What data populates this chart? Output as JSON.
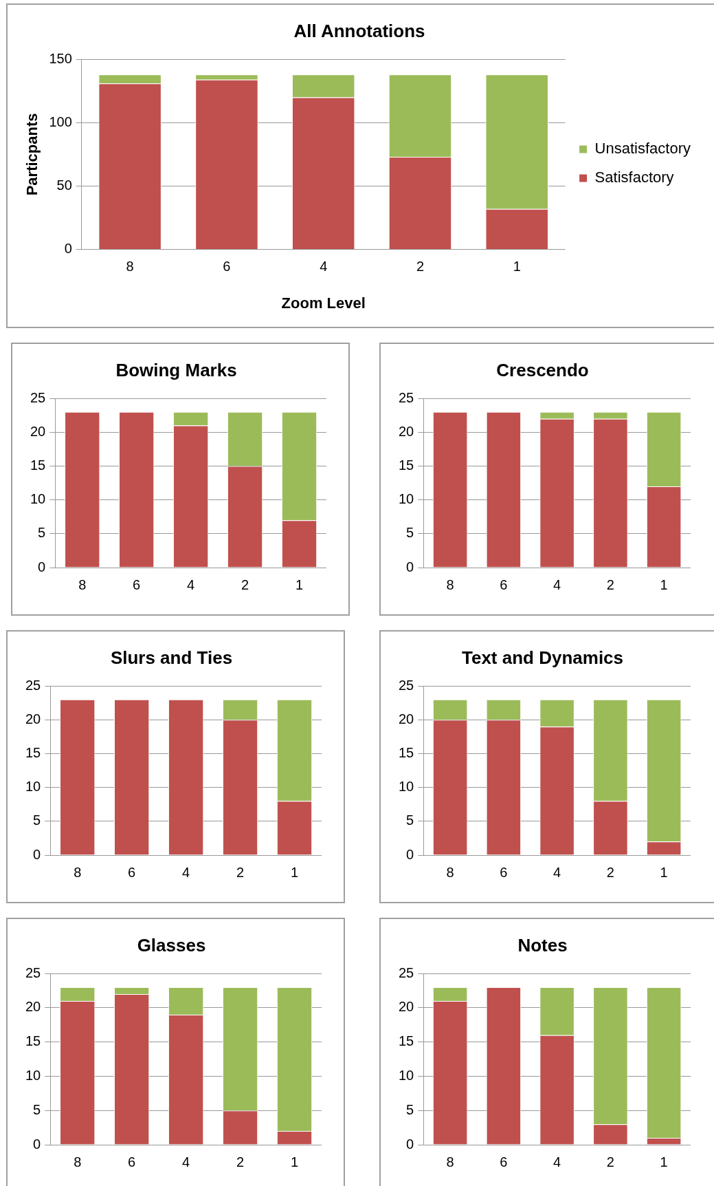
{
  "chart_data": [
    {
      "type": "bar",
      "title": "All Annotations",
      "xlabel": "Zoom Level",
      "ylabel": "Particpants",
      "categories": [
        "8",
        "6",
        "4",
        "2",
        "1"
      ],
      "stacked": true,
      "ylim": [
        0,
        150
      ],
      "yticks": [
        0,
        50,
        100,
        150
      ],
      "grid": "y",
      "legend": "right",
      "series": [
        {
          "name": "Satisfactory",
          "color": "#c0504d",
          "values": [
            131,
            134,
            120,
            73,
            32
          ]
        },
        {
          "name": "Unsatisfactory",
          "color": "#9bbb59",
          "values": [
            7,
            4,
            18,
            65,
            106
          ]
        }
      ]
    },
    {
      "type": "bar",
      "title": "Bowing Marks",
      "categories": [
        "8",
        "6",
        "4",
        "2",
        "1"
      ],
      "stacked": true,
      "ylim": [
        0,
        25
      ],
      "yticks": [
        0,
        5,
        10,
        15,
        20,
        25
      ],
      "grid": "y",
      "series": [
        {
          "color": "#c0504d",
          "values": [
            23,
            23,
            21,
            15,
            7
          ]
        },
        {
          "color": "#9bbb59",
          "values": [
            0,
            0,
            2,
            8,
            16
          ]
        }
      ]
    },
    {
      "type": "bar",
      "title": "Crescendo",
      "categories": [
        "8",
        "6",
        "4",
        "2",
        "1"
      ],
      "stacked": true,
      "ylim": [
        0,
        25
      ],
      "yticks": [
        0,
        5,
        10,
        15,
        20,
        25
      ],
      "grid": "y",
      "series": [
        {
          "color": "#c0504d",
          "values": [
            23,
            23,
            22,
            22,
            12
          ]
        },
        {
          "color": "#9bbb59",
          "values": [
            0,
            0,
            1,
            1,
            11
          ]
        }
      ]
    },
    {
      "type": "bar",
      "title": "Slurs and Ties",
      "categories": [
        "8",
        "6",
        "4",
        "2",
        "1"
      ],
      "stacked": true,
      "ylim": [
        0,
        25
      ],
      "yticks": [
        0,
        5,
        10,
        15,
        20,
        25
      ],
      "grid": "y",
      "series": [
        {
          "color": "#c0504d",
          "values": [
            23,
            23,
            23,
            20,
            8
          ]
        },
        {
          "color": "#9bbb59",
          "values": [
            0,
            0,
            0,
            3,
            15
          ]
        }
      ]
    },
    {
      "type": "bar",
      "title": "Text and Dynamics",
      "categories": [
        "8",
        "6",
        "4",
        "2",
        "1"
      ],
      "stacked": true,
      "ylim": [
        0,
        25
      ],
      "yticks": [
        0,
        5,
        10,
        15,
        20,
        25
      ],
      "grid": "y",
      "series": [
        {
          "color": "#c0504d",
          "values": [
            20,
            20,
            19,
            8,
            2
          ]
        },
        {
          "color": "#9bbb59",
          "values": [
            3,
            3,
            4,
            15,
            21
          ]
        }
      ]
    },
    {
      "type": "bar",
      "title": "Glasses",
      "categories": [
        "8",
        "6",
        "4",
        "2",
        "1"
      ],
      "stacked": true,
      "ylim": [
        0,
        25
      ],
      "yticks": [
        0,
        5,
        10,
        15,
        20,
        25
      ],
      "grid": "y",
      "series": [
        {
          "color": "#c0504d",
          "values": [
            21,
            22,
            19,
            5,
            2
          ]
        },
        {
          "color": "#9bbb59",
          "values": [
            2,
            1,
            4,
            18,
            21
          ]
        }
      ]
    },
    {
      "type": "bar",
      "title": "Notes",
      "categories": [
        "8",
        "6",
        "4",
        "2",
        "1"
      ],
      "stacked": true,
      "ylim": [
        0,
        25
      ],
      "yticks": [
        0,
        5,
        10,
        15,
        20,
        25
      ],
      "grid": "y",
      "series": [
        {
          "color": "#c0504d",
          "values": [
            21,
            23,
            16,
            3,
            1
          ]
        },
        {
          "color": "#9bbb59",
          "values": [
            2,
            0,
            7,
            20,
            22
          ]
        }
      ]
    }
  ]
}
